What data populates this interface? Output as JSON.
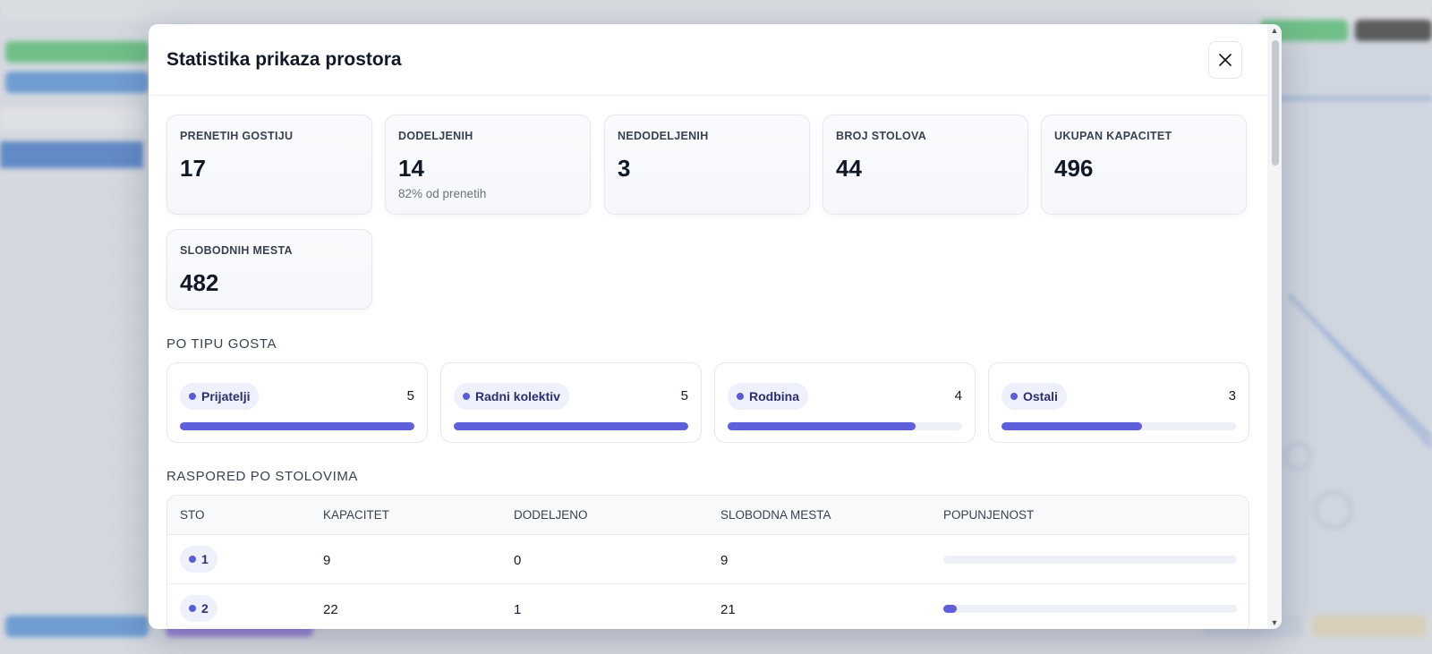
{
  "modal": {
    "title": "Statistika prikaza prostora",
    "close_icon": "close-icon"
  },
  "stats": [
    {
      "label": "PRENETIH GOSTIJU",
      "value": "17",
      "sub": ""
    },
    {
      "label": "DODELJENIH",
      "value": "14",
      "sub": "82% od prenetih"
    },
    {
      "label": "NEDODELJENIH",
      "value": "3",
      "sub": ""
    },
    {
      "label": "BROJ STOLOVA",
      "value": "44",
      "sub": ""
    },
    {
      "label": "UKUPAN KAPACITET",
      "value": "496",
      "sub": ""
    },
    {
      "label": "SLOBODNIH MESTA",
      "value": "482",
      "sub": ""
    }
  ],
  "guest_types": {
    "title": "PO TIPU GOSTA",
    "items": [
      {
        "label": "Prijatelji",
        "count": "5",
        "fill": 1.0
      },
      {
        "label": "Radni kolektiv",
        "count": "5",
        "fill": 1.0
      },
      {
        "label": "Rodbina",
        "count": "4",
        "fill": 0.8
      },
      {
        "label": "Ostali",
        "count": "3",
        "fill": 0.6
      }
    ]
  },
  "tables": {
    "title": "RASPORED PO STOLOVIMA",
    "columns": [
      "STO",
      "KAPACITET",
      "DODELJENO",
      "SLOBODNA MESTA",
      "POPUNJENOST"
    ],
    "rows": [
      {
        "sto": "1",
        "kapacitet": "9",
        "dodeljeno": "0",
        "slobodno": "9",
        "fill": 0.0
      },
      {
        "sto": "2",
        "kapacitet": "22",
        "dodeljeno": "1",
        "slobodno": "21",
        "fill": 0.045
      }
    ]
  },
  "colors": {
    "accent": "#5f5fdc",
    "pill_bg": "#eef0fb"
  }
}
